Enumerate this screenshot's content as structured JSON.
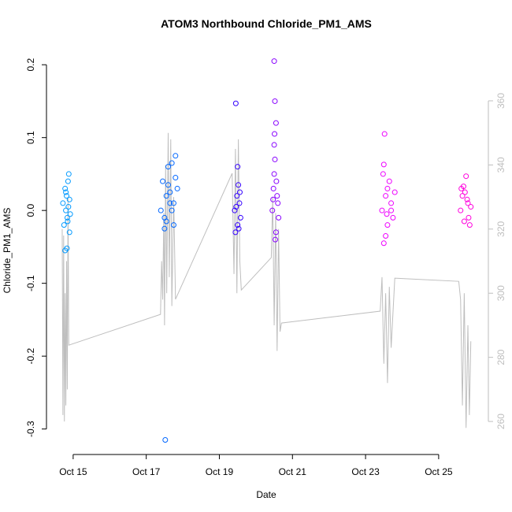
{
  "chart_data": {
    "type": "scatter",
    "title": "ATOM3 Northbound Chloride_PM1_AMS",
    "x_label": "Date",
    "y_label": "Chloride_PM1_AMS",
    "xlim": [
      14.27,
      26.36
    ],
    "ylim": [
      -0.335,
      0.224
    ],
    "y2lim": [
      249.7,
      376.7
    ],
    "xticks": [
      {
        "value": 15,
        "label": "Oct 15"
      },
      {
        "value": 17,
        "label": "Oct 17"
      },
      {
        "value": 19,
        "label": "Oct 19"
      },
      {
        "value": 21,
        "label": "Oct 21"
      },
      {
        "value": 23,
        "label": "Oct 23"
      },
      {
        "value": 25,
        "label": "Oct 25"
      }
    ],
    "yticks": [
      -0.3,
      -0.2,
      -0.1,
      {
        "value": 0,
        "label": "0.0"
      },
      0.1,
      0.2
    ],
    "y2ticks": [
      260,
      280,
      300,
      320,
      340,
      360
    ],
    "y2_tick_color": "#bebebe",
    "series": [
      {
        "type": "line",
        "axis": "y2",
        "color": "#bebebe",
        "x": [
          14.7,
          14.72,
          14.74,
          14.76,
          14.78,
          14.8,
          14.82,
          14.84,
          14.86,
          14.88,
          17.39,
          17.42,
          17.45,
          17.48,
          17.5,
          17.53,
          17.56,
          17.6,
          17.63,
          17.67,
          17.7,
          17.75,
          17.8,
          19.35,
          19.4,
          19.44,
          19.48,
          19.52,
          19.56,
          19.6,
          20.42,
          20.46,
          20.5,
          20.54,
          20.58,
          20.62,
          20.66,
          20.7,
          23.4,
          23.45,
          23.5,
          23.55,
          23.6,
          23.65,
          23.7,
          23.8,
          25.55,
          25.6,
          25.65,
          25.7,
          25.75,
          25.8,
          25.84,
          25.88
        ],
        "values": [
          320,
          262,
          318,
          260,
          300,
          265,
          310,
          270,
          330,
          283.8,
          293.4,
          310,
          298,
          325,
          290,
          340,
          300,
          350,
          305,
          348,
          296,
          330,
          298.1,
          337.4,
          306,
          345,
          300,
          348,
          310,
          301.0,
          311.1,
          330,
          290,
          325,
          282,
          320,
          288,
          290.7,
          294.4,
          305,
          278,
          300,
          272,
          302,
          283,
          304.7,
          303.7,
          298,
          265,
          300,
          258,
          290,
          262,
          285
        ]
      },
      {
        "type": "scatter",
        "color": "#0099FF",
        "x": [
          14.72,
          14.75,
          14.78,
          14.8,
          14.82,
          14.84,
          14.86,
          14.88,
          14.9,
          14.92,
          14.78,
          14.83,
          14.87,
          14.9,
          14.8,
          14.85
        ],
        "values": [
          0.01,
          -0.02,
          0.03,
          0.0,
          0.02,
          -0.01,
          0.04,
          0.05,
          0.015,
          -0.005,
          -0.055,
          -0.052,
          0.005,
          -0.03,
          0.025,
          -0.015
        ]
      },
      {
        "type": "scatter",
        "color": "#0066FF",
        "x": [
          17.4,
          17.45,
          17.5,
          17.55,
          17.6,
          17.65,
          17.7,
          17.75,
          17.8,
          17.85,
          17.5,
          17.6,
          17.7,
          17.8,
          17.55,
          17.65,
          17.75,
          17.52
        ],
        "values": [
          0.0,
          0.04,
          -0.01,
          0.02,
          0.06,
          0.01,
          0.065,
          -0.02,
          0.075,
          0.03,
          -0.025,
          0.035,
          0.0,
          0.045,
          -0.015,
          0.025,
          0.01,
          -0.315
        ]
      },
      {
        "type": "scatter",
        "color": "#3300FF",
        "x": [
          19.42,
          19.45,
          19.48,
          19.5,
          19.52,
          19.55,
          19.58,
          19.44,
          19.5,
          19.56,
          19.46,
          19.53
        ],
        "values": [
          0.0,
          0.147,
          0.02,
          -0.02,
          0.035,
          0.01,
          -0.01,
          -0.03,
          0.06,
          0.025,
          0.005,
          -0.025
        ]
      },
      {
        "type": "scatter",
        "color": "#8800FF",
        "x": [
          20.45,
          20.48,
          20.5,
          20.52,
          20.55,
          20.58,
          20.62,
          20.5,
          20.52,
          20.5,
          20.53,
          20.55,
          20.6,
          20.47,
          20.51,
          20.56
        ],
        "values": [
          0.0,
          0.03,
          0.205,
          0.15,
          0.12,
          0.02,
          -0.01,
          0.09,
          0.07,
          0.05,
          -0.04,
          -0.03,
          0.01,
          0.015,
          0.105,
          0.04
        ]
      },
      {
        "type": "scatter",
        "color": "#EE00FF",
        "x": [
          23.45,
          23.5,
          23.52,
          23.55,
          23.6,
          23.65,
          23.7,
          23.75,
          23.8,
          23.5,
          23.55,
          23.6,
          23.7,
          23.48,
          23.58
        ],
        "values": [
          0.0,
          0.063,
          0.105,
          0.02,
          -0.02,
          0.04,
          0.01,
          -0.01,
          0.025,
          -0.045,
          -0.035,
          0.03,
          0.0,
          0.05,
          -0.005
        ]
      },
      {
        "type": "scatter",
        "color": "#FF00DD",
        "x": [
          25.6,
          25.65,
          25.7,
          25.75,
          25.8,
          25.85,
          25.88,
          25.62,
          25.72,
          25.82,
          25.68,
          25.78
        ],
        "values": [
          0.0,
          0.02,
          -0.015,
          0.047,
          0.01,
          -0.02,
          0.005,
          0.03,
          0.025,
          -0.01,
          0.033,
          0.015
        ]
      }
    ]
  }
}
